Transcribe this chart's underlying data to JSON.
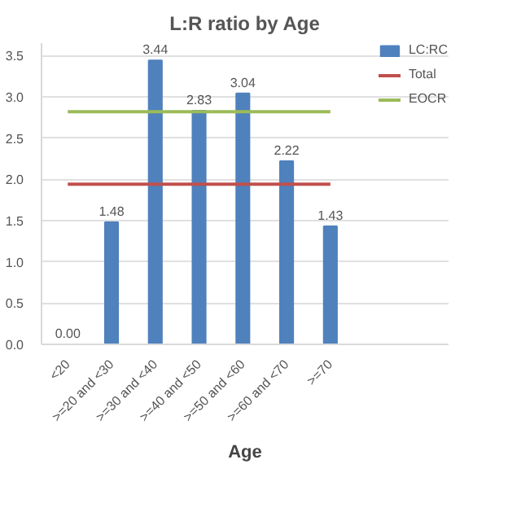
{
  "chart_data": {
    "type": "bar",
    "title": "L:R ratio by Age",
    "xlabel": "Age",
    "categories": [
      "<20",
      ">=20 and <30",
      ">=30 and <40",
      ">=40 and <50",
      ">=50 and <60",
      ">=60 and <70",
      ">=70"
    ],
    "series": [
      {
        "name": "LC:RC",
        "color": "#4f81bd",
        "values": [
          0.0,
          1.48,
          3.44,
          2.83,
          3.04,
          2.22,
          1.43
        ],
        "value_labels": [
          "0.00",
          "1.48",
          "3.44",
          "2.83",
          "3.04",
          "2.22",
          "1.43"
        ]
      }
    ],
    "ref_lines": [
      {
        "axis": "y",
        "value": 1.94,
        "label": "Total",
        "color": "#c0504d"
      },
      {
        "axis": "y",
        "value": 2.82,
        "label": "EOCR",
        "color": "#9bbb59"
      }
    ],
    "ylim": [
      0,
      3.65
    ],
    "yticks": [
      {
        "value": 0,
        "label": "0.0"
      },
      {
        "value": 0.5,
        "label": "0.5"
      },
      {
        "value": 1,
        "label": "1.0"
      },
      {
        "value": 1.5,
        "label": "1.5"
      },
      {
        "value": 2,
        "label": "2.0"
      },
      {
        "value": 2.5,
        "label": "2.5"
      },
      {
        "value": 3,
        "label": "3.0"
      },
      {
        "value": 3.5,
        "label": "3.5"
      }
    ],
    "grid": "y",
    "legend": "top right"
  }
}
